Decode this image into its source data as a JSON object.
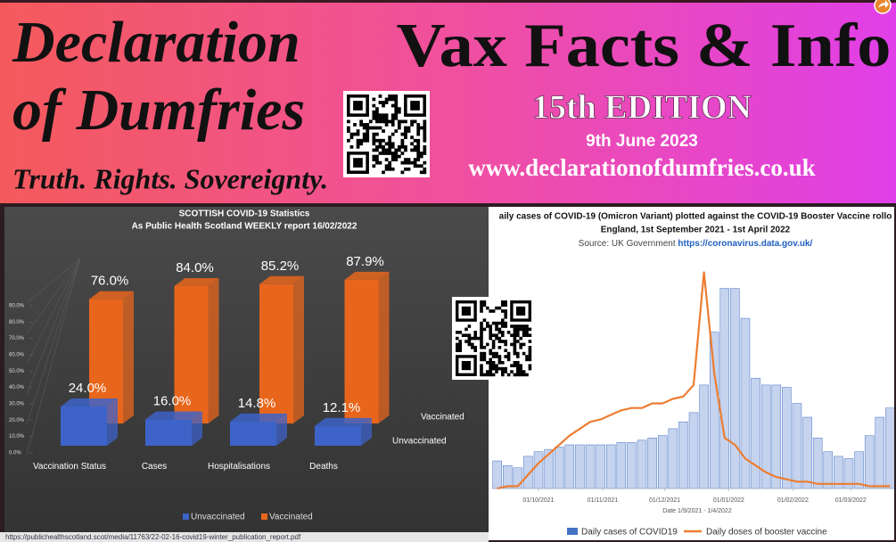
{
  "header": {
    "title_line1": "Declaration",
    "title_line2": "of Dumfries",
    "tagline": "Truth. Rights. Sovereignty.",
    "heading": "Vax Facts & Info",
    "edition": "15th EDITION",
    "date": "9th June 2023",
    "website": "www.declarationofdumfries.co.uk"
  },
  "chart_data": [
    {
      "type": "bar",
      "title": "SCOTTISH COVID-19 Statistics",
      "subtitle": "As Public Health Scotland WEEKLY report 16/02/2022",
      "categories": [
        "Vaccination Status",
        "Cases",
        "Hospitalisations",
        "Deaths"
      ],
      "series": [
        {
          "name": "Unvaccinated",
          "color": "#3d63c9",
          "values": [
            24.0,
            16.0,
            14.8,
            12.1
          ],
          "value_labels": [
            "24.0%",
            "16.0%",
            "14.8%",
            "12.1%"
          ]
        },
        {
          "name": "Vaccinated",
          "color": "#e8661c",
          "values": [
            76.0,
            84.0,
            85.2,
            87.9
          ],
          "value_labels": [
            "76.0%",
            "84.0%",
            "85.2%",
            "87.9%"
          ]
        }
      ],
      "ylim": [
        0,
        90
      ],
      "yticks": [
        {
          "value": 0,
          "label": "0.0%"
        },
        {
          "value": 10,
          "label": "10.0%"
        },
        {
          "value": 20,
          "label": "20.0%"
        },
        {
          "value": 30,
          "label": "30.0%"
        },
        {
          "value": 40,
          "label": "40.0%"
        },
        {
          "value": 50,
          "label": "50.0%"
        },
        {
          "value": 60,
          "label": "60.0%"
        },
        {
          "value": 70,
          "label": "70.0%"
        },
        {
          "value": 80,
          "label": "80.0%"
        },
        {
          "value": 90,
          "label": "90.0%"
        }
      ],
      "legend": "bottom",
      "source": "https://publichealthscotland.scot/media/11763/22-02-16-covid19-winter_publication_report.pdf"
    },
    {
      "type": "combo",
      "title": "aily cases of COVID-19 (Omicron Variant) plotted against the COVID-19 Booster Vaccine rollo",
      "subtitle": "England, 1st September 2021 - 1st April 2022",
      "source_label": "Source: UK Government",
      "source_url": "https://coronavirus.data.gov.uk/",
      "xlabel": "Date 1/9/2021 - 1/4/2022",
      "x": [
        10,
        15,
        20,
        25,
        30,
        35,
        40,
        45,
        50,
        55,
        60,
        65,
        70,
        75,
        80,
        85,
        90,
        95,
        100,
        105,
        110,
        115,
        120,
        125,
        130,
        135,
        140,
        145,
        150,
        155,
        160,
        165,
        170,
        175,
        180,
        185,
        190,
        195,
        200
      ],
      "series": [
        {
          "name": "Daily cases of COVID19",
          "type": "bar",
          "color": "#4472c4",
          "values": [
            12,
            10,
            9,
            14,
            16,
            17,
            18,
            19,
            19,
            19,
            19,
            19,
            20,
            20,
            21,
            22,
            23,
            26,
            29,
            33,
            45,
            68,
            87,
            87,
            74,
            48,
            45,
            45,
            44,
            37,
            31,
            22,
            16,
            14,
            13,
            16,
            23,
            31,
            35
          ]
        },
        {
          "name": "Daily doses of booster vaccine",
          "type": "line",
          "color": "#ed7d31",
          "values": [
            0,
            1,
            1,
            6,
            11,
            15,
            19,
            23,
            26,
            29,
            30,
            32,
            34,
            35,
            35,
            37,
            37,
            39,
            40,
            45,
            94,
            50,
            22,
            19,
            13,
            10,
            7,
            5,
            4,
            3,
            3,
            2,
            2,
            2,
            2,
            2,
            1,
            1,
            1
          ]
        }
      ],
      "xlim": [
        8,
        202
      ],
      "xticks": [
        {
          "value": 30,
          "label": "01/10/2021"
        },
        {
          "value": 61,
          "label": "01/11/2021"
        },
        {
          "value": 91,
          "label": "01/12/2021"
        },
        {
          "value": 122,
          "label": "01/01/2022"
        },
        {
          "value": 153,
          "label": "01/02/2022"
        },
        {
          "value": 181,
          "label": "01/03/2022"
        }
      ],
      "ylim": [
        0,
        100
      ],
      "legend": "bottom"
    }
  ]
}
